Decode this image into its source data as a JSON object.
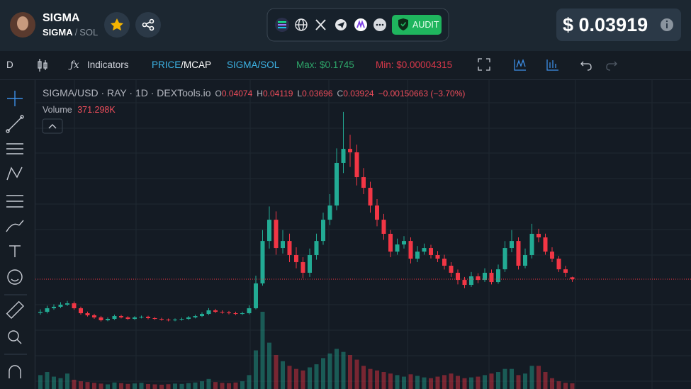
{
  "header": {
    "token_name": "SIGMA",
    "pair_base": "SIGMA",
    "pair_sep": "/",
    "pair_quote": "SOL",
    "audit": "AUDIT",
    "price": "$ 0.03919"
  },
  "toolbar": {
    "interval": "D",
    "indicators": "Indicators",
    "price_label": "PRICE",
    "mcap_label": "/MCAP",
    "pair": "SIGMA/SOL",
    "max": "Max: $0.1745",
    "min": "Min: $0.00004315"
  },
  "chart_data": {
    "type": "candlestick",
    "title": "SIGMA/USD · RAY · 1D · DEXTools.io",
    "ohlc_letters": [
      "O",
      "H",
      "L",
      "C"
    ],
    "change": "−0.00150663 (−3.70%)",
    "volume_title": "Volume",
    "volume_value_label": "371.298K",
    "up_color": "#22ab94",
    "down_color": "#f23645",
    "ylim": [
      -0.05,
      0.2
    ],
    "volume_lim": [
      0,
      10000000
    ],
    "open": [
      0.012,
      0.0128,
      0.0157,
      0.0169,
      0.0186,
      0.0197,
      0.0157,
      0.0117,
      0.01,
      0.0083,
      0.006,
      0.0071,
      0.0094,
      0.0083,
      0.0071,
      0.0083,
      0.0088,
      0.0077,
      0.0071,
      0.0065,
      0.006,
      0.0065,
      0.0071,
      0.0083,
      0.0094,
      0.0111,
      0.014,
      0.0128,
      0.0123,
      0.0117,
      0.0111,
      0.0117,
      0.0157,
      0.0358,
      0.0701,
      0.0873,
      0.0644,
      0.0701,
      0.0587,
      0.053,
      0.0444,
      0.0587,
      0.0701,
      0.0873,
      0.0988,
      0.1332,
      0.1446,
      0.1418,
      0.1217,
      0.1131,
      0.0988,
      0.0873,
      0.0759,
      0.0615,
      0.0673,
      0.0701,
      0.0558,
      0.0615,
      0.0644,
      0.0587,
      0.0558,
      0.0501,
      0.0444,
      0.0386,
      0.0346,
      0.0415,
      0.0386,
      0.0444,
      0.0369,
      0.0472,
      0.0644,
      0.0701,
      0.0501,
      0.0587,
      0.0759,
      0.073,
      0.0615,
      0.0558,
      0.0472,
      0.04074
    ],
    "high": [
      0.0148,
      0.0177,
      0.0189,
      0.0206,
      0.0217,
      0.0212,
      0.017,
      0.013,
      0.0112,
      0.0095,
      0.0083,
      0.0106,
      0.0104,
      0.0093,
      0.0093,
      0.0098,
      0.0096,
      0.0086,
      0.008,
      0.0074,
      0.0075,
      0.0081,
      0.0094,
      0.0106,
      0.0124,
      0.0158,
      0.0152,
      0.014,
      0.0135,
      0.0129,
      0.0129,
      0.018,
      0.042,
      0.079,
      0.098,
      0.094,
      0.079,
      0.076,
      0.065,
      0.057,
      0.064,
      0.076,
      0.093,
      0.108,
      0.145,
      0.1745,
      0.156,
      0.148,
      0.129,
      0.118,
      0.104,
      0.092,
      0.079,
      0.072,
      0.074,
      0.073,
      0.066,
      0.068,
      0.067,
      0.062,
      0.059,
      0.053,
      0.047,
      0.041,
      0.045,
      0.044,
      0.048,
      0.047,
      0.051,
      0.07,
      0.079,
      0.073,
      0.064,
      0.084,
      0.08,
      0.076,
      0.065,
      0.058,
      0.05,
      0.04119
    ],
    "low": [
      0.0105,
      0.0115,
      0.0145,
      0.0158,
      0.0175,
      0.0145,
      0.0105,
      0.009,
      0.0072,
      0.005,
      0.0052,
      0.0063,
      0.0075,
      0.0062,
      0.0063,
      0.0075,
      0.0068,
      0.0063,
      0.0056,
      0.0051,
      0.0052,
      0.0057,
      0.0063,
      0.0075,
      0.0086,
      0.0102,
      0.0118,
      0.0113,
      0.0108,
      0.0102,
      0.0103,
      0.0108,
      0.0148,
      0.034,
      0.064,
      0.059,
      0.06,
      0.053,
      0.048,
      0.04,
      0.041,
      0.055,
      0.067,
      0.083,
      0.095,
      0.125,
      0.13,
      0.115,
      0.108,
      0.093,
      0.082,
      0.071,
      0.057,
      0.059,
      0.064,
      0.052,
      0.053,
      0.059,
      0.056,
      0.053,
      0.047,
      0.041,
      0.035,
      0.032,
      0.033,
      0.036,
      0.037,
      0.035,
      0.0355,
      0.045,
      0.061,
      0.047,
      0.048,
      0.056,
      0.069,
      0.059,
      0.053,
      0.045,
      0.041,
      0.03696
    ],
    "close": [
      0.0128,
      0.0157,
      0.0169,
      0.0186,
      0.0197,
      0.0157,
      0.0117,
      0.01,
      0.0083,
      0.006,
      0.0071,
      0.0094,
      0.0083,
      0.0071,
      0.0083,
      0.0088,
      0.0077,
      0.0071,
      0.0065,
      0.006,
      0.0065,
      0.0071,
      0.0083,
      0.0094,
      0.0111,
      0.014,
      0.0128,
      0.0123,
      0.0117,
      0.0111,
      0.0117,
      0.0157,
      0.0358,
      0.0701,
      0.0873,
      0.0644,
      0.0701,
      0.0587,
      0.053,
      0.0444,
      0.0587,
      0.0701,
      0.0873,
      0.0988,
      0.1332,
      0.1446,
      0.1418,
      0.1217,
      0.1131,
      0.0988,
      0.0873,
      0.0759,
      0.0615,
      0.0673,
      0.0701,
      0.0558,
      0.0615,
      0.0644,
      0.0587,
      0.0558,
      0.0501,
      0.0444,
      0.0386,
      0.0346,
      0.0415,
      0.0386,
      0.0444,
      0.0369,
      0.0472,
      0.0644,
      0.0701,
      0.0501,
      0.0587,
      0.0759,
      0.073,
      0.0615,
      0.0558,
      0.0472,
      0.0444,
      0.03924
    ],
    "volume": [
      900000,
      1100000,
      800000,
      700000,
      1000000,
      600000,
      500000,
      450000,
      400000,
      350000,
      300000,
      420000,
      380000,
      330000,
      360000,
      400000,
      320000,
      300000,
      280000,
      310000,
      350000,
      330000,
      380000,
      420000,
      500000,
      650000,
      450000,
      400000,
      380000,
      420000,
      500000,
      900000,
      2500000,
      5000000,
      3000000,
      2200000,
      1800000,
      1500000,
      1300000,
      1200000,
      1400000,
      1600000,
      2000000,
      2300000,
      2600000,
      2400000,
      2200000,
      1900000,
      1500000,
      1300000,
      1200000,
      1100000,
      1000000,
      900000,
      800000,
      950000,
      850000,
      750000,
      700000,
      800000,
      900000,
      1000000,
      850000,
      700000,
      750000,
      800000,
      900000,
      1000000,
      1100000,
      1300000,
      1300000,
      900000,
      1000000,
      1500000,
      1500000,
      1100000,
      700000,
      500000,
      400000,
      371298
    ]
  }
}
